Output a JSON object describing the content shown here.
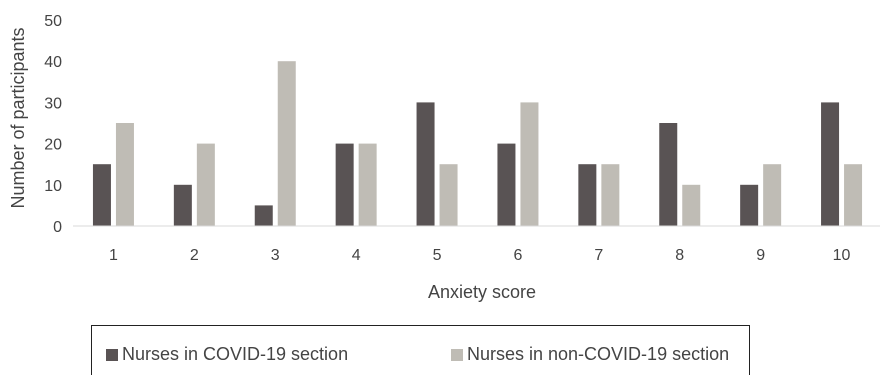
{
  "chart_data": {
    "type": "bar",
    "categories": [
      "1",
      "2",
      "3",
      "4",
      "5",
      "6",
      "7",
      "8",
      "9",
      "10"
    ],
    "series": [
      {
        "name": "Nurses in COVID-19 section",
        "color": "#595354",
        "values": [
          15,
          10,
          5,
          20,
          30,
          20,
          15,
          25,
          10,
          30
        ]
      },
      {
        "name": "Nurses in non-COVID-19 section",
        "color": "#bfbcb5",
        "values": [
          25,
          20,
          40,
          20,
          15,
          30,
          15,
          10,
          15,
          15
        ]
      }
    ],
    "xlabel": "Anxiety score",
    "ylabel": "Number of participants",
    "ylim": [
      0,
      50
    ],
    "yticks": [
      "0",
      "10",
      "20",
      "30",
      "40",
      "50"
    ],
    "grid": false,
    "legend_position": "bottom"
  }
}
